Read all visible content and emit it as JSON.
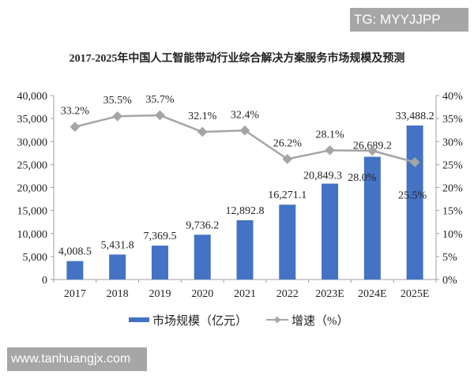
{
  "watermarks": {
    "top": "TG: MYYJJPP",
    "bottom": "www.tanhuangjx.com"
  },
  "chart_data": {
    "type": "bar+line",
    "title": "2017-2025年中国人工智能带动行业综合解决方案服务市场规模及预测",
    "categories": [
      "2017",
      "2018",
      "2019",
      "2020",
      "2021",
      "2022",
      "2023E",
      "2024E",
      "2025E"
    ],
    "series": [
      {
        "name": "市场规模（亿元）",
        "type": "bar",
        "axis": "left",
        "color": "#4472c4",
        "values": [
          4008.5,
          5431.8,
          7369.5,
          9736.2,
          12892.8,
          16271.1,
          20849.3,
          26689.2,
          33488.2
        ],
        "labels": [
          "4,008.5",
          "5,431.8",
          "7,369.5",
          "9,736.2",
          "12,892.8",
          "16,271.1",
          "20,849.3",
          "26,689.2",
          "33,488.2"
        ]
      },
      {
        "name": "增速（%）",
        "type": "line",
        "axis": "right",
        "color": "#a5a5a5",
        "values": [
          33.2,
          35.5,
          35.7,
          32.1,
          32.4,
          26.2,
          28.1,
          28.0,
          25.5
        ],
        "labels": [
          "33.2%",
          "35.5%",
          "35.7%",
          "32.1%",
          "32.4%",
          "26.2%",
          "28.1%",
          "28.0%",
          "25.5%"
        ]
      }
    ],
    "left_axis": {
      "ylim": [
        0,
        40000
      ],
      "ticks": [
        "0",
        "5,000",
        "10,000",
        "15,000",
        "20,000",
        "25,000",
        "30,000",
        "35,000",
        "40,000"
      ]
    },
    "right_axis": {
      "ylim": [
        0,
        40
      ],
      "ticks": [
        "0%",
        "5%",
        "10%",
        "15%",
        "20%",
        "25%",
        "30%",
        "35%",
        "40%"
      ]
    },
    "legend": {
      "position": "bottom",
      "items": [
        "市场规模（亿元）",
        "增速（%）"
      ]
    },
    "grid": false
  }
}
